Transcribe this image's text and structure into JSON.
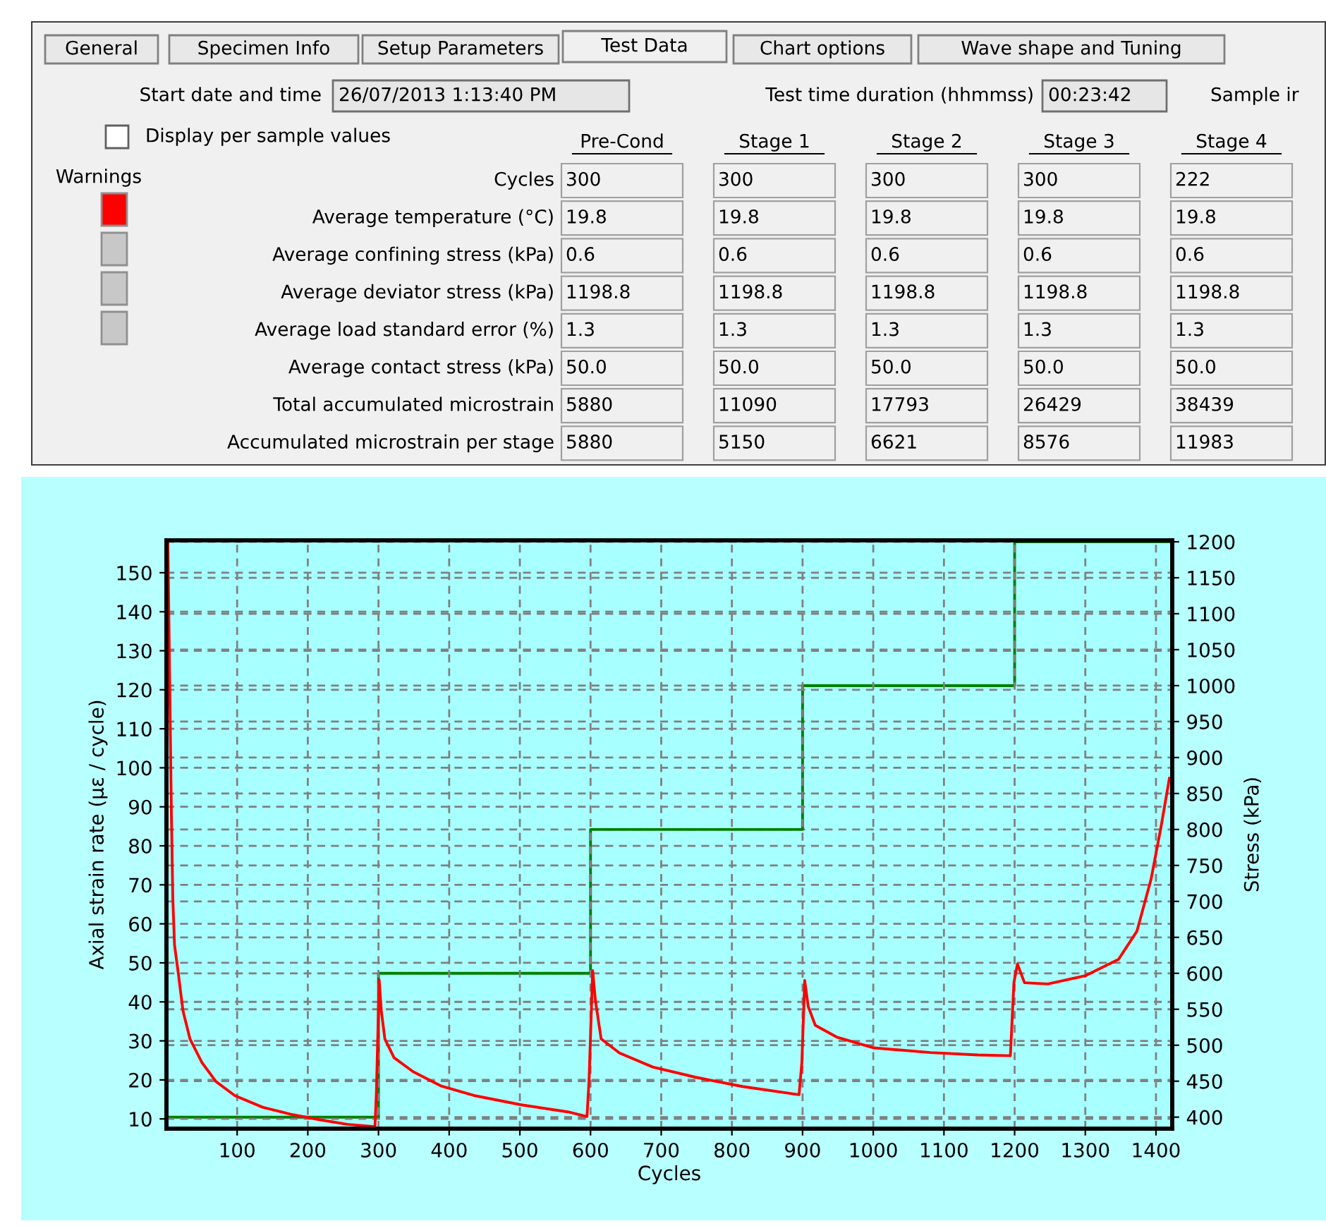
{
  "chart_data": [
    {
      "type": "other",
      "annotations": [
        "General",
        "Specimen Info",
        "Setup Parameters",
        "Test Data",
        "Chart options",
        "Wave shape and Tuning",
        "Start date and time",
        "26/07/2013 1:13:40 PM",
        "Test time duration (hhmmss)",
        "00:23:42",
        "Sample ir",
        "Display per sample values",
        "Warnings"
      ],
      "categories": [
        "Pre-Cond",
        "Stage 1",
        "Stage 2",
        "Stage 3",
        "Stage 4"
      ],
      "y_categories": [
        "Cycles",
        "Average temperature (°C)",
        "Average confining stress (kPa)",
        "Average deviator stress (kPa)",
        "Average load standard error (%)",
        "Average contact stress (kPa)",
        "Total accumulated microstrain",
        "Accumulated microstrain per stage"
      ],
      "cell_labels": [
        [
          "300",
          "300",
          "300",
          "300",
          "222"
        ],
        [
          "19.8",
          "19.8",
          "19.8",
          "19.8",
          "19.8"
        ],
        [
          "0.6",
          "0.6",
          "0.6",
          "0.6",
          "0.6"
        ],
        [
          "1198.8",
          "1198.8",
          "1198.8",
          "1198.8",
          "1198.8"
        ],
        [
          "1.3",
          "1.3",
          "1.3",
          "1.3",
          "1.3"
        ],
        [
          "50.0",
          "50.0",
          "50.0",
          "50.0",
          "50.0"
        ],
        [
          "5880",
          "11090",
          "17793",
          "26429",
          "38439"
        ],
        [
          "5880",
          "5150",
          "6621",
          "8576",
          "11983"
        ]
      ]
    },
    {
      "type": "line",
      "xlabel": "Cycles",
      "ylabel": "Axial strain rate (µε / cycle)",
      "y2label": "Stress (kPa)",
      "series": [
        {
          "color": "#ff0000",
          "x": [
            2,
            7,
            9,
            11.4,
            16.7,
            23.4,
            33.3,
            50,
            70,
            96.5,
            136,
            176,
            216,
            256,
            295,
            297,
            301,
            304,
            309,
            322,
            349,
            389,
            435,
            502,
            568,
            595,
            598,
            603,
            607,
            615,
            641,
            688,
            748,
            815,
            895,
            899,
            903,
            908,
            918,
            948,
            1001,
            1081,
            1148,
            1194,
            1199,
            1204,
            1214,
            1247,
            1300,
            1347,
            1373,
            1393,
            1407,
            1419
          ],
          "values": [
            158,
            88,
            66.5,
            54.6,
            47.4,
            37.7,
            30.5,
            24.5,
            19.6,
            16.0,
            13.0,
            11.2,
            9.8,
            8.6,
            8.0,
            16.6,
            45.6,
            37.7,
            30.5,
            25.7,
            22.1,
            18.4,
            16.0,
            13.6,
            11.8,
            10.6,
            20.3,
            48,
            40.2,
            30.5,
            26.9,
            23.3,
            20.7,
            18.3,
            16.2,
            24.4,
            45.5,
            38.8,
            34.0,
            31.0,
            28.2,
            27.0,
            26.4,
            26.2,
            44.9,
            49.7,
            44.9,
            44.6,
            46.7,
            50.9,
            58.1,
            71.4,
            84.7,
            97.3
          ]
        },
        {
          "color": "#008000",
          "axis": "y2",
          "x": [
            0,
            300,
            300,
            600,
            600,
            900,
            900,
            1200,
            1200,
            1422
          ],
          "values": [
            400,
            400,
            600,
            600,
            800,
            800,
            1000,
            1000,
            1200,
            1200
          ]
        }
      ],
      "xlim": [
        0,
        1423
      ],
      "xticks": [
        100,
        200,
        300,
        400,
        500,
        600,
        700,
        800,
        900,
        1000,
        1100,
        1200,
        1300,
        1400
      ],
      "ylim": [
        7.5,
        158.3
      ],
      "yticks": [
        10,
        20,
        30,
        40,
        50,
        60,
        70,
        80,
        90,
        100,
        110,
        120,
        130,
        140,
        150
      ],
      "y2lim": [
        384,
        1202
      ],
      "y2ticks": [
        400,
        450,
        500,
        550,
        600,
        650,
        700,
        750,
        800,
        850,
        900,
        950,
        1000,
        1050,
        1100,
        1150,
        1200
      ],
      "grid": true,
      "line_style": "solid"
    }
  ]
}
